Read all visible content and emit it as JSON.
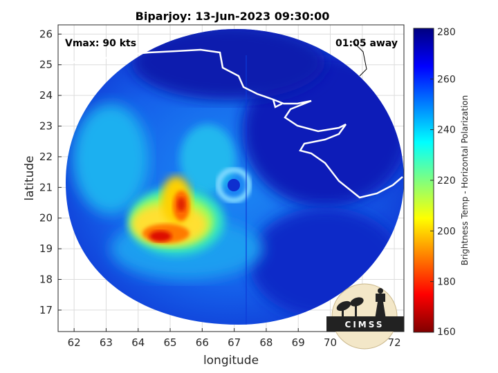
{
  "chart_data": {
    "type": "heatmap",
    "title": "Biparjoy: 13-Jun-2023 09:30:00",
    "xlabel": "longitude",
    "ylabel": "latitude",
    "xlim": [
      61.5,
      72.3
    ],
    "ylim": [
      16.3,
      26.3
    ],
    "xticks": [
      62,
      63,
      64,
      65,
      66,
      67,
      68,
      69,
      70,
      71,
      72
    ],
    "yticks": [
      17,
      18,
      19,
      20,
      21,
      22,
      23,
      24,
      25,
      26
    ],
    "grid": true,
    "annotations": {
      "vmax": "Vmax: 90 kts",
      "time_offset": "01:05 away"
    },
    "storm_center": {
      "lon": 67.1,
      "lat": 21.0
    },
    "colorbar": {
      "label": "Brightness Temp - Horizontal Polarization",
      "min": 160,
      "max": 280,
      "ticks": [
        160,
        180,
        200,
        220,
        240,
        260,
        280
      ],
      "colormap": "jet"
    },
    "logo_text": "CIMSS"
  }
}
